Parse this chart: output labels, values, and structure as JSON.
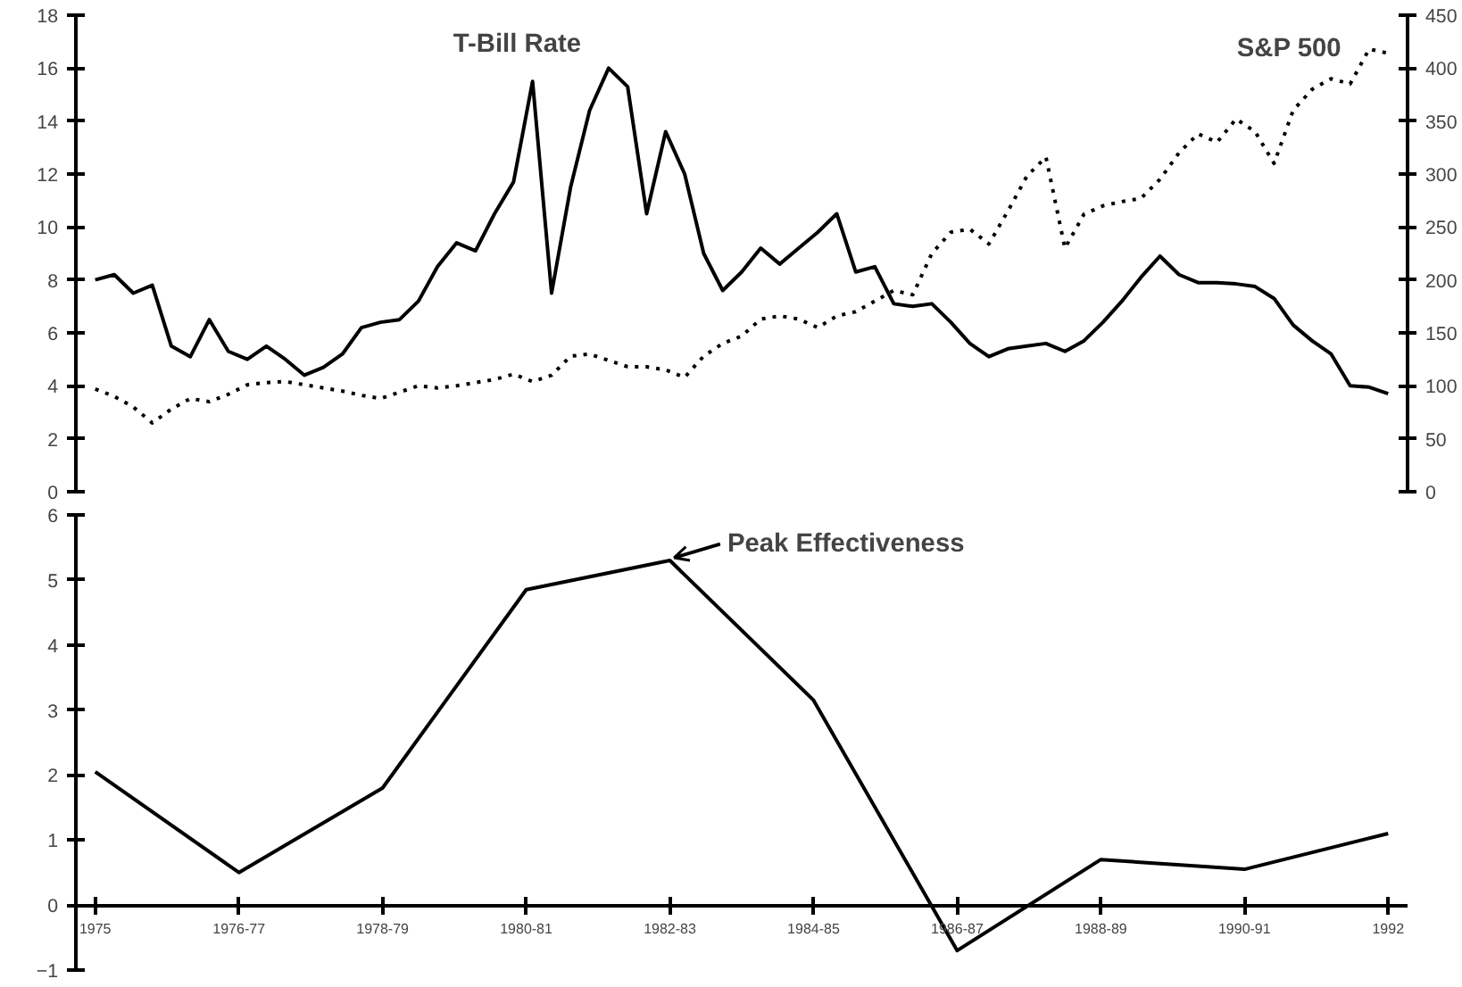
{
  "chart_data": [
    {
      "type": "line",
      "categories": [
        null,
        null,
        null,
        null,
        null,
        null,
        null,
        null,
        null,
        null,
        null,
        null,
        null,
        null,
        null,
        null,
        null,
        null,
        null,
        null,
        null,
        null,
        null,
        null,
        null,
        null,
        null,
        null,
        null,
        null,
        null,
        null,
        null,
        null,
        null,
        null,
        null,
        null,
        null,
        null,
        null,
        null,
        null,
        null,
        null,
        null,
        null,
        null,
        null,
        null,
        null,
        null,
        null,
        null,
        null,
        null,
        null,
        null,
        null,
        null,
        null,
        null,
        null,
        null,
        null,
        null,
        null,
        null,
        null
      ],
      "ylim": [
        0,
        18
      ],
      "yticks": [
        0,
        2,
        4,
        6,
        8,
        10,
        12,
        14,
        16,
        18
      ],
      "y2lim": [
        0,
        450
      ],
      "y2ticks": [
        0,
        50,
        100,
        150,
        200,
        250,
        300,
        350,
        400,
        450
      ],
      "tick_labels": "y",
      "marker": "none",
      "series": [
        {
          "name": "T-Bill Rate",
          "color": "#000000",
          "line_style": "solid",
          "values": [
            8.0,
            8.2,
            7.5,
            7.8,
            5.5,
            5.1,
            6.5,
            5.3,
            5.0,
            5.5,
            5.0,
            4.4,
            4.7,
            5.2,
            6.2,
            6.4,
            6.5,
            7.2,
            8.5,
            9.4,
            9.1,
            10.5,
            11.7,
            15.5,
            7.5,
            11.5,
            14.4,
            16.0,
            15.3,
            10.5,
            13.6,
            12.0,
            9.0,
            7.6,
            8.3,
            9.2,
            8.6,
            9.2,
            9.8,
            10.5,
            8.3,
            8.5,
            7.1,
            7.0,
            7.1,
            6.4,
            5.6,
            5.1,
            5.4,
            5.5,
            5.6,
            5.3,
            5.7,
            6.4,
            7.2,
            8.1,
            8.9,
            8.2,
            7.9,
            7.9,
            7.85,
            7.75,
            7.3,
            6.3,
            5.7,
            5.2,
            4.0,
            3.95,
            3.7
          ]
        },
        {
          "name": "S&P 500",
          "color": "#000000",
          "line_style": "dotted",
          "axis": "y2",
          "values": [
            97,
            90,
            80,
            65,
            78,
            88,
            85,
            92,
            101,
            103,
            104,
            101,
            98,
            95,
            91,
            88,
            94,
            100,
            98,
            100,
            103,
            106,
            111,
            104,
            110,
            128,
            130,
            124,
            118,
            118,
            115,
            108,
            128,
            140,
            147,
            163,
            166,
            163,
            155,
            166,
            170,
            180,
            190,
            186,
            225,
            245,
            248,
            234,
            265,
            298,
            316,
            230,
            262,
            270,
            274,
            277,
            295,
            320,
            338,
            330,
            352,
            340,
            310,
            360,
            380,
            390,
            385,
            418,
            414
          ]
        }
      ]
    },
    {
      "type": "line",
      "categories": [
        "1975",
        "1976-77",
        "1978-79",
        "1980-81",
        "1982-83",
        "1984-85",
        "1986-87",
        "1988-89",
        "1990-91",
        "1992"
      ],
      "values": [
        2.05,
        0.5,
        1.8,
        4.85,
        5.3,
        3.15,
        -0.7,
        0.7,
        0.55,
        1.1
      ],
      "color": "#000000",
      "line_style": "solid",
      "marker": "none",
      "ylim": [
        -1,
        6
      ],
      "yticks": [
        -1,
        0,
        1,
        2,
        3,
        4,
        5,
        6
      ],
      "annotations": [
        {
          "text": "Peak Effectiveness",
          "x": "1982-83",
          "y": 5.3
        }
      ]
    }
  ]
}
